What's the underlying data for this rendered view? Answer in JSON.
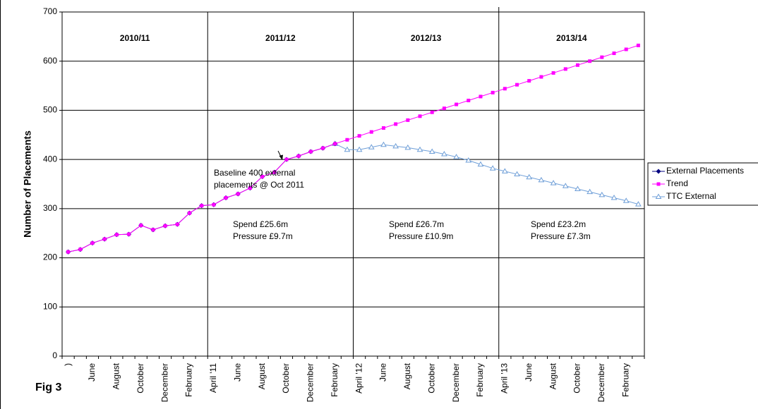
{
  "chart_data": {
    "type": "line",
    "y_label": "Number of Placements",
    "figure_label": "Fig 3",
    "ylim": [
      0,
      700
    ],
    "yticks": [
      0,
      100,
      200,
      300,
      400,
      500,
      600,
      700
    ],
    "grid": true,
    "legend": "right",
    "periods": [
      "2010/11",
      "2011/12",
      "2012/13",
      "2013/14"
    ],
    "categories": [
      ")",
      null,
      "June",
      null,
      "August",
      null,
      "October",
      null,
      "December",
      null,
      "February",
      null,
      "April '11",
      null,
      "June",
      null,
      "August",
      null,
      "October",
      null,
      "December",
      null,
      "February",
      null,
      "April '12",
      null,
      "June",
      null,
      "August",
      null,
      "October",
      null,
      "December",
      null,
      "February",
      null,
      "April '13",
      null,
      "June",
      null,
      "August",
      null,
      "October",
      null,
      "December",
      null,
      "February",
      null
    ],
    "series": [
      {
        "name": "External Placements",
        "color": "#000080",
        "marker": "diamond",
        "values": [
          212,
          217,
          230,
          238,
          247,
          248,
          266,
          257,
          265,
          268,
          291,
          306,
          308,
          322,
          330,
          342,
          365,
          374,
          400,
          407,
          416,
          423,
          432,
          null,
          null,
          null,
          null,
          null,
          null,
          null,
          null,
          null,
          null,
          null,
          null,
          null,
          null,
          null,
          null,
          null,
          null,
          null,
          null,
          null,
          null,
          null,
          null,
          null
        ]
      },
      {
        "name": "Trend",
        "color": "#ff00ff",
        "marker": "square",
        "values": [
          212,
          217,
          230,
          238,
          247,
          248,
          266,
          257,
          265,
          268,
          291,
          306,
          308,
          322,
          330,
          342,
          365,
          374,
          400,
          407,
          416,
          423,
          432,
          440,
          448,
          456,
          464,
          472,
          480,
          488,
          496,
          504,
          512,
          520,
          528,
          536,
          544,
          552,
          560,
          568,
          576,
          584,
          592,
          600,
          608,
          616,
          624,
          632
        ]
      },
      {
        "name": "TTC External",
        "color": "#6f9fd8",
        "marker": "triangle",
        "values": [
          null,
          null,
          null,
          null,
          null,
          null,
          null,
          null,
          null,
          null,
          null,
          null,
          null,
          null,
          null,
          null,
          null,
          null,
          null,
          null,
          null,
          null,
          432,
          420,
          420,
          425,
          430,
          427,
          424,
          420,
          416,
          411,
          405,
          398,
          390,
          382,
          376,
          370,
          364,
          358,
          352,
          346,
          340,
          334,
          328,
          322,
          316,
          309
        ]
      }
    ],
    "callout": [
      "Baseline 400 external",
      "placements @ Oct 2011"
    ],
    "notes": [
      [
        "Spend £25.6m",
        "Pressure £9.7m"
      ],
      [
        "Spend £26.7m",
        "Pressure £10.9m"
      ],
      [
        "Spend £23.2m",
        "Pressure £7.3m"
      ]
    ]
  }
}
